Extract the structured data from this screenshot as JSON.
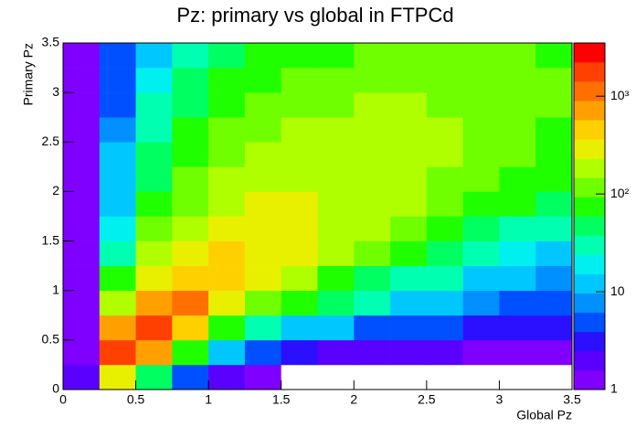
{
  "chart_data": {
    "type": "heatmap",
    "title": "Pz: primary vs global in FTPCd",
    "xlabel": "Global Pz",
    "ylabel": "Primary Pz",
    "xbins": [
      0,
      0.25,
      0.5,
      0.75,
      1,
      1.25,
      1.5,
      1.75,
      2,
      2.25,
      2.5,
      2.75,
      3,
      3.25,
      3.5
    ],
    "ybins": [
      0,
      0.25,
      0.5,
      0.75,
      1,
      1.25,
      1.5,
      1.75,
      2,
      2.25,
      2.5,
      2.75,
      3,
      3.25,
      3.5
    ],
    "values": [
      [
        2,
        300,
        40,
        5,
        2,
        1,
        0,
        0,
        0,
        0,
        0,
        0,
        0,
        0
      ],
      [
        1,
        1500,
        600,
        60,
        10,
        4,
        3,
        2,
        2,
        2,
        2,
        1,
        1,
        1
      ],
      [
        1,
        800,
        1500,
        400,
        80,
        30,
        15,
        10,
        6,
        5,
        4,
        3,
        3,
        3
      ],
      [
        1,
        150,
        700,
        900,
        300,
        120,
        60,
        40,
        25,
        15,
        12,
        8,
        6,
        5
      ],
      [
        1,
        60,
        300,
        500,
        500,
        300,
        150,
        80,
        50,
        35,
        25,
        15,
        12,
        8
      ],
      [
        1,
        30,
        150,
        300,
        400,
        350,
        250,
        150,
        100,
        60,
        40,
        30,
        20,
        15
      ],
      [
        1,
        20,
        100,
        200,
        300,
        300,
        250,
        200,
        150,
        100,
        70,
        50,
        35,
        25
      ],
      [
        1,
        15,
        70,
        130,
        200,
        250,
        250,
        220,
        180,
        150,
        100,
        80,
        60,
        40
      ],
      [
        1,
        12,
        50,
        100,
        150,
        200,
        220,
        220,
        200,
        170,
        130,
        100,
        80,
        60
      ],
      [
        1,
        10,
        40,
        80,
        120,
        160,
        180,
        200,
        200,
        180,
        150,
        120,
        100,
        80
      ],
      [
        1,
        8,
        30,
        60,
        100,
        130,
        150,
        170,
        170,
        170,
        150,
        130,
        110,
        90
      ],
      [
        1,
        6,
        25,
        50,
        80,
        100,
        120,
        140,
        150,
        150,
        140,
        130,
        110,
        100
      ],
      [
        1,
        5,
        20,
        40,
        60,
        80,
        100,
        110,
        120,
        130,
        120,
        120,
        110,
        100
      ],
      [
        1,
        4,
        15,
        30,
        50,
        70,
        80,
        90,
        100,
        100,
        100,
        100,
        100,
        90
      ]
    ],
    "xlim": [
      0,
      3.5
    ],
    "xticks": [
      0,
      0.5,
      1,
      1.5,
      2,
      2.5,
      3,
      3.5
    ],
    "ylim": [
      0,
      3.5
    ],
    "yticks": [
      0,
      0.5,
      1,
      1.5,
      2,
      2.5,
      3,
      3.5
    ],
    "zlim": [
      1,
      3500
    ],
    "zscale": "log",
    "zticks": [
      1,
      10,
      {
        "value": 100,
        "label": "10²"
      },
      {
        "value": 1000,
        "label": "10³"
      }
    ],
    "palette": [
      "#8000ff",
      "#5a00ff",
      "#2a10ff",
      "#0050ff",
      "#0090ff",
      "#00c8ff",
      "#00f0f0",
      "#00ffb0",
      "#00ff60",
      "#20ff00",
      "#70ff00",
      "#b0ff00",
      "#e8f000",
      "#ffd000",
      "#ffa000",
      "#ff7000",
      "#ff4000",
      "#ff0000"
    ]
  }
}
